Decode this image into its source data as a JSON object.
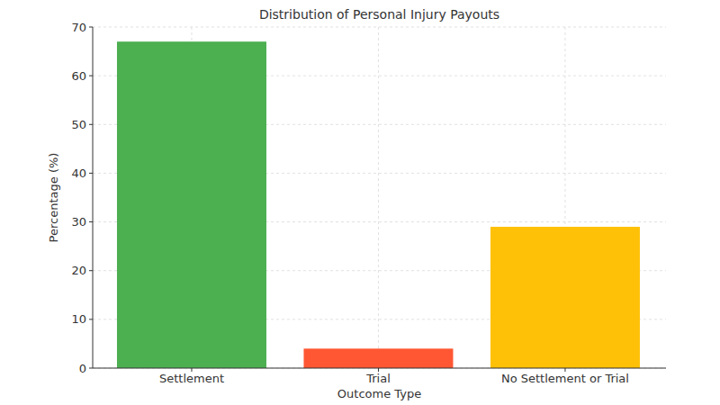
{
  "chart_data": {
    "type": "bar",
    "title": "Distribution of Personal Injury Payouts",
    "x_label": "Outcome Type",
    "y_label": "Percentage (%)",
    "categories": [
      "Settlement",
      "Trial",
      "No Settlement or Trial"
    ],
    "values": [
      67,
      4,
      29
    ],
    "colors": [
      "#4caf50",
      "#ff5733",
      "#ffc107"
    ],
    "ylim": [
      0,
      70
    ],
    "yticks": [
      0,
      10,
      20,
      30,
      40,
      50,
      60,
      70
    ],
    "grid": true
  }
}
